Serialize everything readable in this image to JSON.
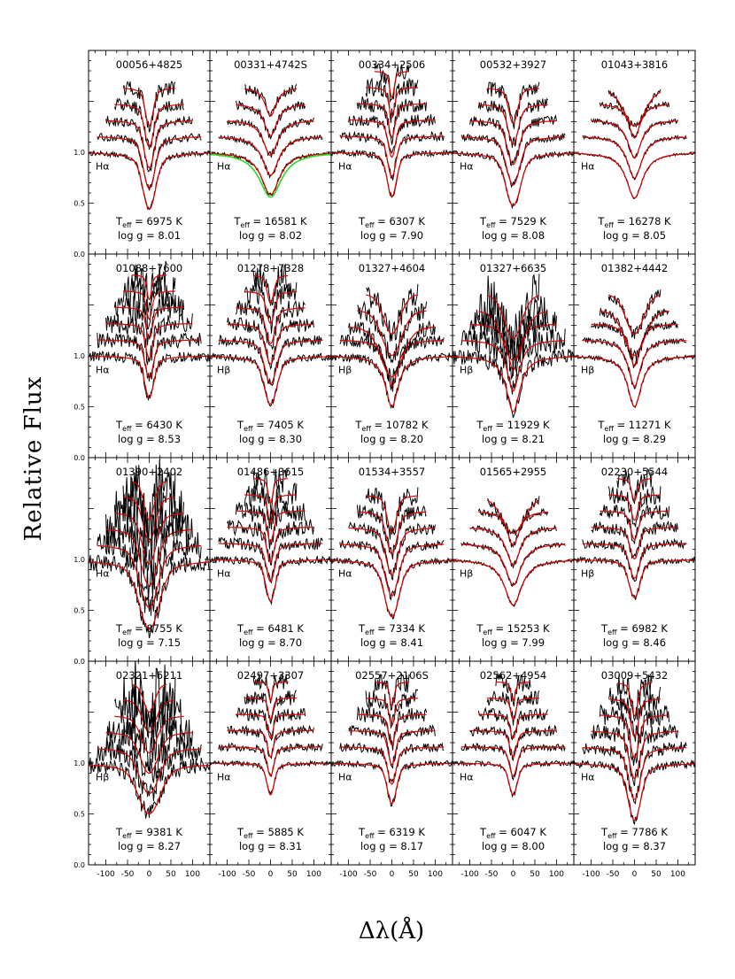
{
  "figure": {
    "ylabel": "Relative Flux",
    "xlabel": "Δλ(Å)"
  },
  "chart_data": {
    "type": "line",
    "xlim": [
      -140,
      140
    ],
    "ylim": [
      0.0,
      2.0
    ],
    "xticks": [
      "-100",
      "-50",
      "0",
      "50",
      "100"
    ],
    "xtick_values": [
      -100,
      -50,
      0,
      50,
      100
    ],
    "yticks": [
      "0.0",
      "0.5",
      "1.0"
    ],
    "ytick_values": [
      0.0,
      0.5,
      1.0
    ],
    "colors": {
      "observed": "#000000",
      "model": "#dd0000",
      "alt_model": "#22dd22"
    },
    "panels": [
      {
        "name": "00056+4825",
        "line": "Hα",
        "teff_text": "6975 K",
        "logg_text": "8.01",
        "teff": 6975,
        "logg": 8.01,
        "n_lines": 5,
        "depth": 0.45,
        "width": 14,
        "noise": 0.025
      },
      {
        "name": "00331+4742S",
        "line": "Hα",
        "teff_text": "16581 K",
        "logg_text": "8.02",
        "teff": 16581,
        "logg": 8.02,
        "n_lines": 5,
        "depth": 0.42,
        "width": 42,
        "noise": 0.018,
        "alt_model": true
      },
      {
        "name": "00334+2506",
        "line": "Hα",
        "teff_text": "6307 K",
        "logg_text": "7.90",
        "teff": 6307,
        "logg": 7.9,
        "n_lines": 6,
        "depth": 0.35,
        "width": 10,
        "noise": 0.03
      },
      {
        "name": "00532+3927",
        "line": "Hα",
        "teff_text": "7529 K",
        "logg_text": "8.08",
        "teff": 7529,
        "logg": 8.08,
        "n_lines": 5,
        "depth": 0.42,
        "width": 16,
        "noise": 0.025
      },
      {
        "name": "01043+3816",
        "line": "Hα",
        "teff_text": "16278 K",
        "logg_text": "8.05",
        "teff": 16278,
        "logg": 8.05,
        "n_lines": 5,
        "depth": 0.45,
        "width": 38,
        "noise": 0.012
      },
      {
        "name": "01088+7600",
        "line": "Hα",
        "teff_text": "6430 K",
        "logg_text": "8.53",
        "teff": 6430,
        "logg": 8.53,
        "n_lines": 6,
        "depth": 0.33,
        "width": 10,
        "noise": 0.05
      },
      {
        "name": "01278+7328",
        "line": "Hβ",
        "teff_text": "7405 K",
        "logg_text": "8.30",
        "teff": 7405,
        "logg": 8.3,
        "n_lines": 6,
        "depth": 0.38,
        "width": 14,
        "noise": 0.035
      },
      {
        "name": "01327+4604",
        "line": "Hβ",
        "teff_text": "10782 K",
        "logg_text": "8.20",
        "teff": 10782,
        "logg": 8.2,
        "n_lines": 5,
        "depth": 0.5,
        "width": 30,
        "noise": 0.04
      },
      {
        "name": "01327+6635",
        "line": "Hβ",
        "teff_text": "11929 K",
        "logg_text": "8.21",
        "teff": 11929,
        "logg": 8.21,
        "n_lines": 5,
        "depth": 0.55,
        "width": 32,
        "noise": 0.08
      },
      {
        "name": "01382+4442",
        "line": "Hβ",
        "teff_text": "11271 K",
        "logg_text": "8.29",
        "teff": 11271,
        "logg": 8.29,
        "n_lines": 5,
        "depth": 0.5,
        "width": 32,
        "noise": 0.02
      },
      {
        "name": "01390+2402",
        "line": "Hα",
        "teff_text": "8755 K",
        "logg_text": "7.15",
        "teff": 8755,
        "logg": 7.15,
        "n_lines": 6,
        "depth": 0.55,
        "width": 22,
        "noise": 0.09
      },
      {
        "name": "01486+3615",
        "line": "Hα",
        "teff_text": "6481 K",
        "logg_text": "8.70",
        "teff": 6481,
        "logg": 8.7,
        "n_lines": 6,
        "depth": 0.33,
        "width": 10,
        "noise": 0.04
      },
      {
        "name": "01534+3557",
        "line": "Hα",
        "teff_text": "7334 K",
        "logg_text": "8.41",
        "teff": 7334,
        "logg": 8.41,
        "n_lines": 5,
        "depth": 0.45,
        "width": 16,
        "noise": 0.03
      },
      {
        "name": "01565+2955",
        "line": "Hβ",
        "teff_text": "15253 K",
        "logg_text": "7.99",
        "teff": 15253,
        "logg": 7.99,
        "n_lines": 5,
        "depth": 0.45,
        "width": 40,
        "noise": 0.015
      },
      {
        "name": "02230+5544",
        "line": "Hβ",
        "teff_text": "6982 K",
        "logg_text": "8.46",
        "teff": 6982,
        "logg": 8.46,
        "n_lines": 6,
        "depth": 0.3,
        "width": 12,
        "noise": 0.03
      },
      {
        "name": "02321+5211",
        "line": "Hβ",
        "teff_text": "9381 K",
        "logg_text": "8.27",
        "teff": 9381,
        "logg": 8.27,
        "n_lines": 6,
        "depth": 0.4,
        "width": 24,
        "noise": 0.08
      },
      {
        "name": "02497+3307",
        "line": "Hα",
        "teff_text": "5885 K",
        "logg_text": "8.31",
        "teff": 5885,
        "logg": 8.31,
        "n_lines": 6,
        "depth": 0.25,
        "width": 8,
        "noise": 0.025
      },
      {
        "name": "02557+2106S",
        "line": "Hα",
        "teff_text": "6319 K",
        "logg_text": "8.17",
        "teff": 6319,
        "logg": 8.17,
        "n_lines": 6,
        "depth": 0.32,
        "width": 10,
        "noise": 0.03
      },
      {
        "name": "02562+4954",
        "line": "Hα",
        "teff_text": "6047 K",
        "logg_text": "8.00",
        "teff": 6047,
        "logg": 8.0,
        "n_lines": 6,
        "depth": 0.25,
        "width": 9,
        "noise": 0.025
      },
      {
        "name": "03009+5432",
        "line": "Hα",
        "teff_text": "7786 K",
        "logg_text": "8.37",
        "teff": 7786,
        "logg": 8.37,
        "n_lines": 6,
        "depth": 0.45,
        "width": 14,
        "noise": 0.04
      }
    ]
  }
}
